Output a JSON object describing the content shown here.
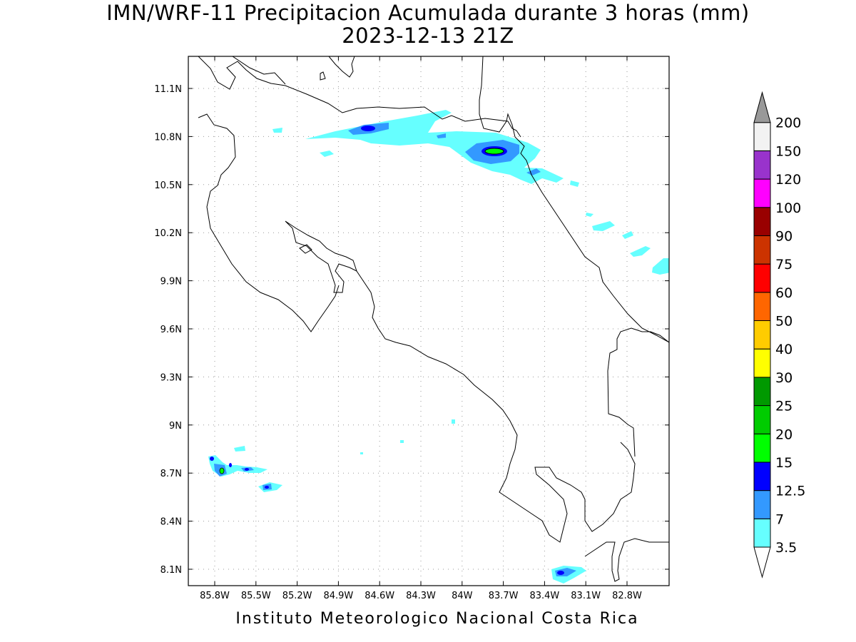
{
  "map": {
    "title": "IMN/WRF-11 Precipitacion Acumulada durante 3 horas (mm)",
    "subtitle": "2023-12-13 21Z",
    "footer": "Instituto Meteorologico Nacional Costa Rica",
    "lon_ticks": [
      "85.8W",
      "85.5W",
      "85.2W",
      "84.9W",
      "84.6W",
      "84.3W",
      "84W",
      "83.7W",
      "83.4W",
      "83.1W",
      "82.8W"
    ],
    "lat_ticks": [
      "11.1N",
      "10.8N",
      "10.5N",
      "10.2N",
      "9.9N",
      "9.6N",
      "9.3N",
      "9N",
      "8.7N",
      "8.4N",
      "8.1N"
    ]
  },
  "colorbar": {
    "labels": [
      "3.5",
      "7",
      "12.5",
      "15",
      "20",
      "25",
      "30",
      "40",
      "50",
      "60",
      "75",
      "90",
      "100",
      "120",
      "150",
      "200"
    ],
    "colors": [
      "#66ffff",
      "#3399ff",
      "#0000ff",
      "#00ff00",
      "#00cc00",
      "#009900",
      "#ffff00",
      "#ffcc00",
      "#ff6600",
      "#ff0000",
      "#cc3300",
      "#990000",
      "#ff00ff",
      "#9933cc",
      "#f2f2f2",
      "#999999"
    ],
    "under_color": "#ffffff",
    "over_color": "#999999"
  },
  "colors": {
    "light": "#66ffff",
    "medium": "#3399ff",
    "dark": "#0000ff",
    "green": "#00ff00"
  }
}
